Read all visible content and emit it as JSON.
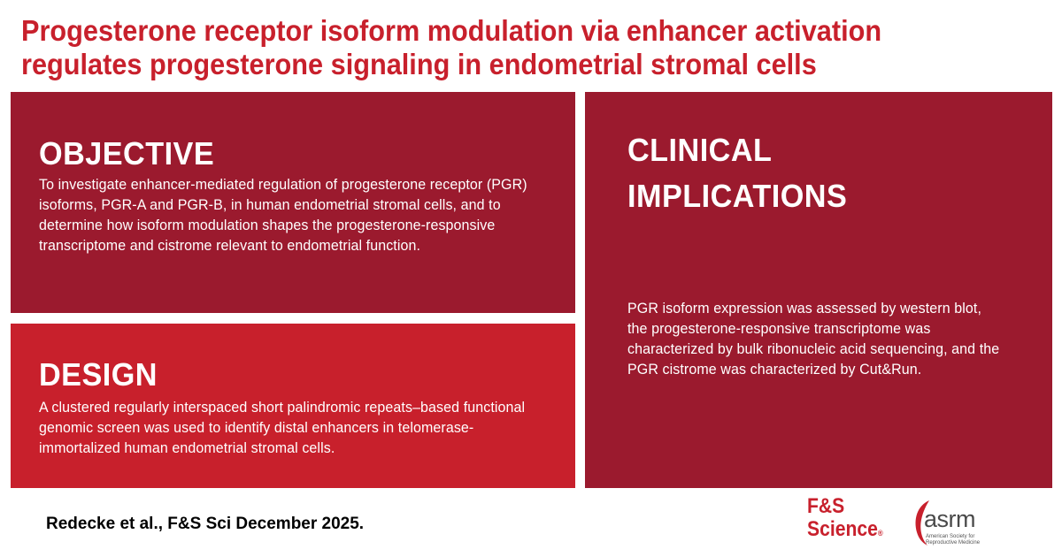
{
  "title": "Progesterone receptor isoform modulation via enhancer activation regulates progesterone signaling in endometrial stromal cells",
  "objective": {
    "heading": "OBJECTIVE",
    "text": "To investigate enhancer-mediated regulation of progesterone receptor (PGR) isoforms, PGR-A and PGR-B, in human endometrial stromal cells, and to determine how isoform modulation shapes the progesterone-responsive transcriptome and cistrome relevant to endometrial function."
  },
  "design": {
    "heading": "DESIGN",
    "text": "A clustered regularly interspaced short palindromic repeats–based functional genomic screen was used to identify distal enhancers in telomerase-immortalized human endometrial stromal cells."
  },
  "clinical": {
    "heading_line1": "CLINICAL",
    "heading_line2": "IMPLICATIONS",
    "text": "PGR isoform expression was assessed by western blot, the progesterone-responsive transcriptome was characterized by bulk ribonucleic acid sequencing, and the PGR cistrome was characterized by Cut&Run."
  },
  "citation": "Redecke et al., F&S Sci December 2025.",
  "journal_logo": {
    "line1": "F&S",
    "line2": "Science",
    "mark": "®"
  },
  "society_logo": {
    "name": "asrm",
    "tagline": "American Society for Reproductive Medicine"
  },
  "colors": {
    "title": "#c8202c",
    "panel_dark": "#9b1a2e",
    "panel_light": "#c8202c",
    "logo_gray": "#4a4a4a"
  }
}
